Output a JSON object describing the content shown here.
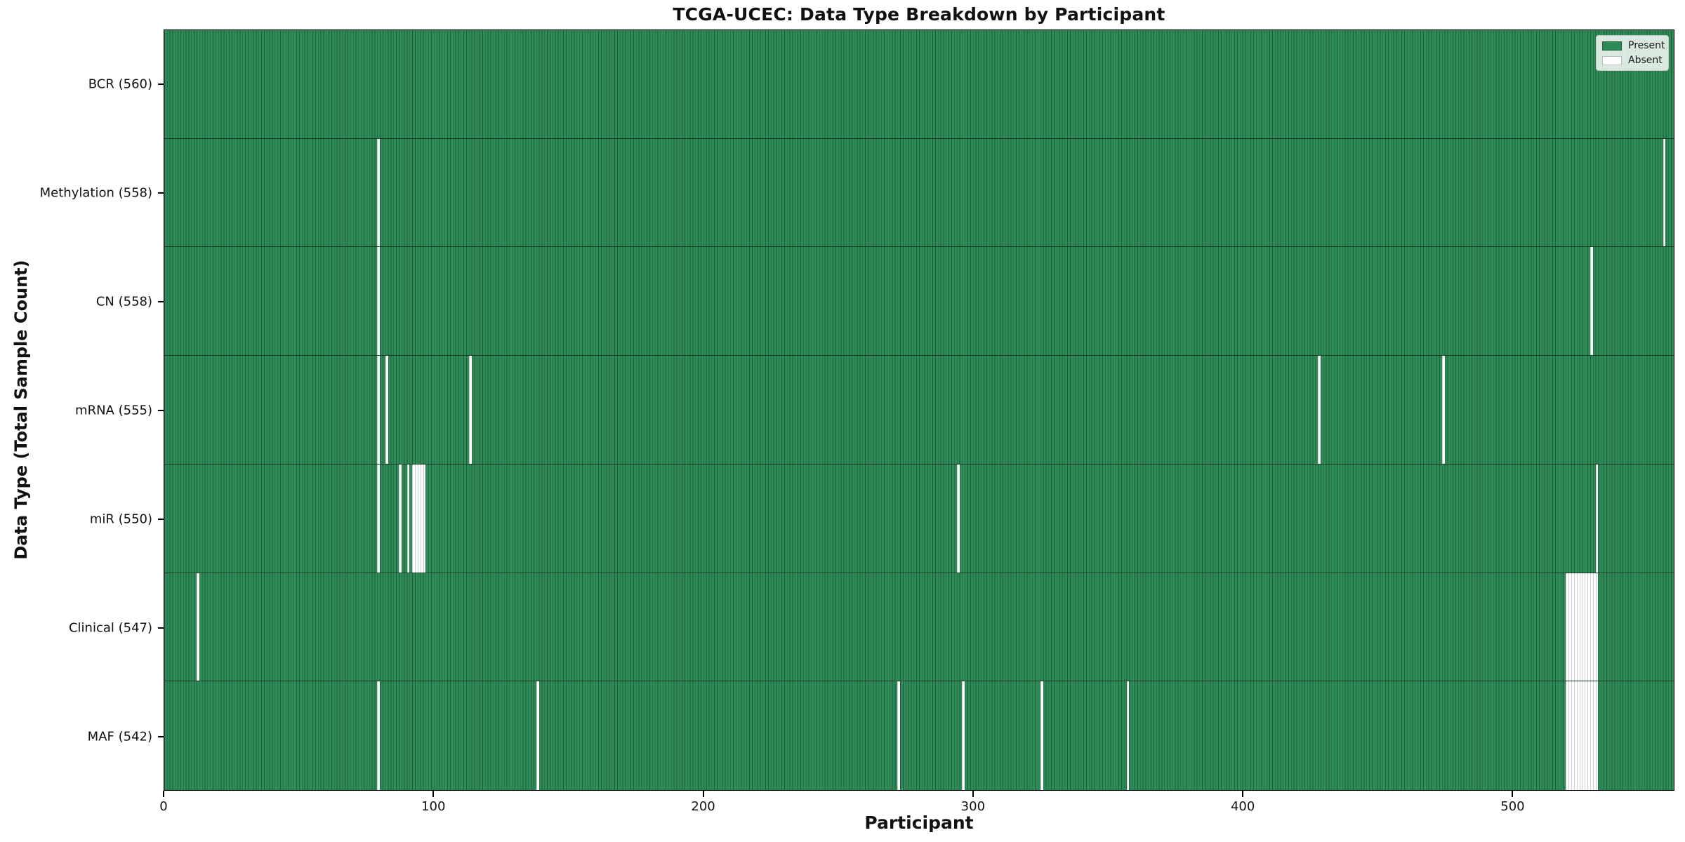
{
  "figure": {
    "title": "TCGA-UCEC: Data Type Breakdown by Participant",
    "xlabel": "Participant",
    "ylabel": "Data Type (Total Sample Count)"
  },
  "legend": {
    "items": [
      {
        "label": "Present",
        "color": "#2e8b57"
      },
      {
        "label": "Absent",
        "color": "#ffffff"
      }
    ]
  },
  "chart_data": {
    "type": "heatmap",
    "title": "TCGA-UCEC: Data Type Breakdown by Participant",
    "xlabel": "Participant",
    "ylabel": "Data Type (Total Sample Count)",
    "x_ticks": [
      0,
      100,
      200,
      300,
      400,
      500
    ],
    "x_range": [
      0,
      560
    ],
    "n_participants": 560,
    "grid": false,
    "legend_position": "upper right",
    "present_color": "#2e8b57",
    "bar_edge_color": "#1d5c3a",
    "absent_color": "#ffffff",
    "rows": [
      {
        "label": "BCR (560)",
        "data_type": "BCR",
        "total": 560,
        "absent_participants": []
      },
      {
        "label": "Methylation (558)",
        "data_type": "Methylation",
        "total": 558,
        "absent_participants": [
          79,
          556
        ]
      },
      {
        "label": "CN (558)",
        "data_type": "CN",
        "total": 558,
        "absent_participants": [
          79,
          529
        ]
      },
      {
        "label": "mRNA (555)",
        "data_type": "mRNA",
        "total": 555,
        "absent_participants": [
          79,
          82,
          113,
          428,
          474
        ]
      },
      {
        "label": "miR (550)",
        "data_type": "miR",
        "total": 550,
        "absent_participants": [
          79,
          87,
          90,
          92,
          93,
          94,
          95,
          96,
          294,
          531
        ]
      },
      {
        "label": "Clinical (547)",
        "data_type": "Clinical",
        "total": 547,
        "absent_participants": [
          12,
          520,
          521,
          522,
          523,
          524,
          525,
          526,
          527,
          528,
          529,
          530,
          531
        ]
      },
      {
        "label": "MAF (542)",
        "data_type": "MAF",
        "total": 542,
        "absent_participants": [
          79,
          138,
          272,
          296,
          325,
          357,
          520,
          521,
          522,
          523,
          524,
          525,
          526,
          527,
          528,
          529,
          530,
          531
        ]
      }
    ]
  }
}
